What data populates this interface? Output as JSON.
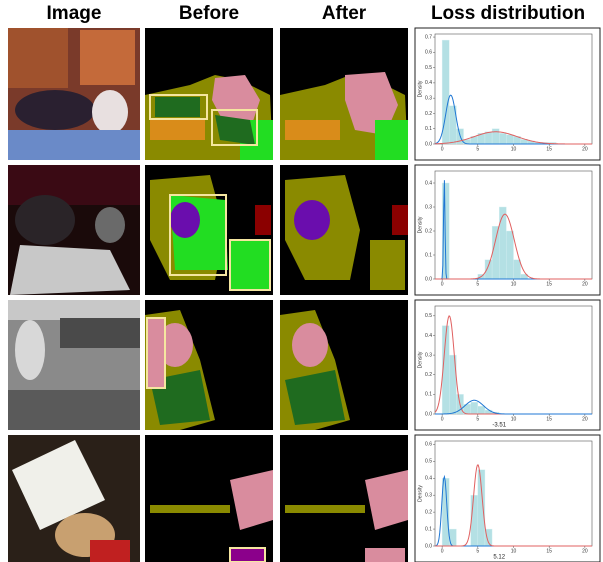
{
  "headers": [
    "Image",
    "Before",
    "After",
    "Loss distribution"
  ],
  "rows": [
    {
      "chart": {
        "type": "histogram",
        "ylabel": "Density",
        "xlim": [
          -1,
          21
        ],
        "ylim": [
          0,
          0.72
        ],
        "xticks": [
          0,
          5,
          10,
          15,
          20
        ],
        "yticks": [
          {
            "value": 0,
            "label": "0.0"
          },
          {
            "value": 0.1,
            "label": "0.1"
          },
          {
            "value": 0.2,
            "label": "0.2"
          },
          {
            "value": 0.3,
            "label": "0.3"
          },
          {
            "value": 0.4,
            "label": "0.4"
          },
          {
            "value": 0.5,
            "label": "0.5"
          },
          {
            "value": 0.6,
            "label": "0.6"
          },
          {
            "value": 0.7,
            "label": "0.7"
          }
        ],
        "bins": [
          -1,
          0,
          1,
          2,
          3,
          4,
          5,
          6,
          7,
          8,
          9,
          10,
          11,
          12,
          13,
          14,
          15,
          16,
          17,
          18,
          19,
          20
        ],
        "counts": [
          0,
          0.68,
          0.25,
          0.1,
          0.03,
          0.05,
          0.07,
          0.08,
          0.1,
          0.07,
          0.06,
          0.05,
          0.03,
          0.02,
          0.01,
          0.01,
          0.01,
          0,
          0,
          0,
          0
        ],
        "components": [
          {
            "color": "#1f77d4",
            "mean": 1.2,
            "sd": 0.7,
            "peak": 0.32
          },
          {
            "color": "#e06060",
            "mean": 7.5,
            "sd": 3,
            "peak": 0.08
          }
        ]
      }
    },
    {
      "chart": {
        "type": "histogram",
        "ylabel": "Density",
        "xlim": [
          -1,
          21
        ],
        "ylim": [
          0,
          0.45
        ],
        "xticks": [
          0,
          5,
          10,
          15,
          20
        ],
        "yticks": [
          {
            "value": 0,
            "label": "0.0"
          },
          {
            "value": 0.1,
            "label": "0.1"
          },
          {
            "value": 0.2,
            "label": "0.2"
          },
          {
            "value": 0.3,
            "label": "0.3"
          },
          {
            "value": 0.4,
            "label": "0.4"
          }
        ],
        "bins": [
          -1,
          0,
          1,
          2,
          3,
          4,
          5,
          6,
          7,
          8,
          9,
          10,
          11,
          12,
          13,
          14,
          15,
          16,
          17,
          18,
          19,
          20
        ],
        "counts": [
          0,
          0.4,
          0,
          0,
          0,
          0,
          0.02,
          0.08,
          0.22,
          0.3,
          0.2,
          0.08,
          0.02,
          0,
          0,
          0,
          0,
          0,
          0,
          0,
          0
        ],
        "components": [
          {
            "color": "#1f77d4",
            "mean": 0.3,
            "sd": 0.1,
            "peak": 0.42
          },
          {
            "color": "#e06060",
            "mean": 8.8,
            "sd": 1.3,
            "peak": 0.27
          }
        ]
      }
    },
    {
      "chart": {
        "type": "histogram",
        "ylabel": "Density",
        "xlim": [
          -1,
          21
        ],
        "ylim": [
          0,
          0.55
        ],
        "annotation": "-3.51",
        "xticks": [
          0,
          5,
          10,
          15,
          20
        ],
        "yticks": [
          {
            "value": 0,
            "label": "0.0"
          },
          {
            "value": 0.1,
            "label": "0.1"
          },
          {
            "value": 0.2,
            "label": "0.2"
          },
          {
            "value": 0.3,
            "label": "0.3"
          },
          {
            "value": 0.4,
            "label": "0.4"
          },
          {
            "value": 0.5,
            "label": "0.5"
          }
        ],
        "bins": [
          -1,
          0,
          1,
          2,
          3,
          4,
          5,
          6,
          7,
          8,
          9,
          10,
          11,
          12,
          13,
          14,
          15,
          16,
          17,
          18,
          19,
          20
        ],
        "counts": [
          0,
          0.45,
          0.3,
          0.1,
          0.05,
          0.06,
          0.04,
          0.02,
          0.01,
          0,
          0,
          0,
          0,
          0,
          0,
          0,
          0,
          0,
          0,
          0,
          0
        ],
        "components": [
          {
            "color": "#e06060",
            "mean": 1,
            "sd": 0.7,
            "peak": 0.5
          },
          {
            "color": "#1f77d4",
            "mean": 4.5,
            "sd": 1.3,
            "peak": 0.07
          }
        ]
      }
    },
    {
      "chart": {
        "type": "histogram",
        "ylabel": "Density",
        "xlim": [
          -1,
          21
        ],
        "ylim": [
          0,
          0.62
        ],
        "annotation": "5.12",
        "xticks": [
          0,
          5,
          10,
          15,
          20
        ],
        "yticks": [
          {
            "value": 0,
            "label": "0.0"
          },
          {
            "value": 0.1,
            "label": "0.1"
          },
          {
            "value": 0.2,
            "label": "0.2"
          },
          {
            "value": 0.3,
            "label": "0.3"
          },
          {
            "value": 0.4,
            "label": "0.4"
          },
          {
            "value": 0.5,
            "label": "0.5"
          },
          {
            "value": 0.6,
            "label": "0.6"
          }
        ],
        "bins": [
          -1,
          0,
          1,
          2,
          3,
          4,
          5,
          6,
          7,
          8,
          9,
          10,
          11,
          12,
          13,
          14,
          15,
          16,
          17,
          18,
          19,
          20
        ],
        "counts": [
          0,
          0.4,
          0.1,
          0,
          0,
          0.3,
          0.45,
          0.1,
          0,
          0,
          0,
          0,
          0,
          0,
          0,
          0,
          0,
          0,
          0,
          0,
          0
        ],
        "components": [
          {
            "color": "#1f77d4",
            "mean": 0.3,
            "sd": 0.35,
            "peak": 0.41
          },
          {
            "color": "#e06060",
            "mean": 5,
            "sd": 0.6,
            "peak": 0.48
          }
        ]
      }
    }
  ]
}
